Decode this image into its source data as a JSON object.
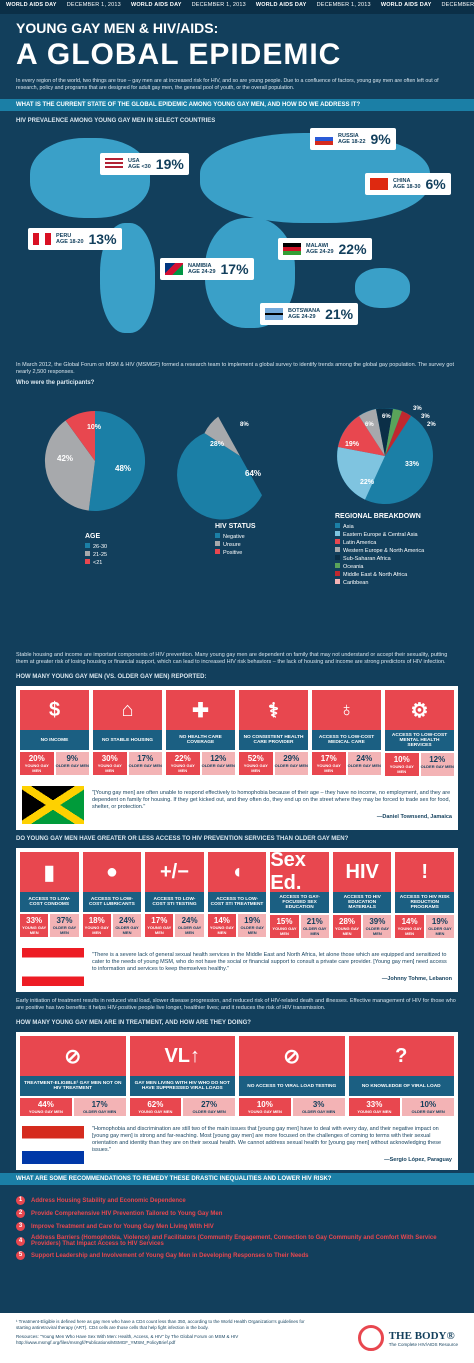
{
  "ticker": [
    "WORLD AIDS DAY",
    "DECEMBER 1, 2013",
    "WORLD AIDS DAY",
    "DECEMBER 1, 2013",
    "WORLD AIDS DAY",
    "DECEMBER 1, 2013",
    "WORLD AIDS DAY",
    "DECEMBER 1, 2013"
  ],
  "header": {
    "title": "YOUNG GAY MEN & HIV/AIDS:",
    "subtitle": "A GLOBAL EPIDEMIC"
  },
  "intro": "In every region of the world, two things are true – gay men are at increased risk for HIV, and so are young people. Due to a confluence of factors, young gay men are often left out of research, policy and programs that are designed for adult gay men, the general pool of youth, or the overall population.",
  "question1": "WHAT IS THE CURRENT STATE OF THE GLOBAL EPIDEMIC AMONG YOUNG GAY MEN, AND HOW DO WE ADDRESS IT?",
  "map_label": "HIV PREVALENCE AMONG YOUNG GAY MEN IN SELECT COUNTRIES",
  "countries": [
    {
      "name": "RUSSIA",
      "age": "AGE 18-22",
      "pct": "9%"
    },
    {
      "name": "USA",
      "age": "AGE <30",
      "pct": "19%"
    },
    {
      "name": "CHINA",
      "age": "AGE 18-30",
      "pct": "6%"
    },
    {
      "name": "PERU",
      "age": "AGE 18-20",
      "pct": "13%"
    },
    {
      "name": "MALAWI",
      "age": "AGE 24-29",
      "pct": "22%"
    },
    {
      "name": "NAMIBIA",
      "age": "AGE 24-29",
      "pct": "17%"
    },
    {
      "name": "BOTSWANA",
      "age": "AGE 24-29",
      "pct": "21%"
    }
  ],
  "survey_desc": "In March 2012, the Global Forum on MSM & HIV (MSMGF) formed a research team to implement a global survey to identify trends among the global gay population. The survey got nearly 2,500 responses.",
  "participants_q": "Who were the participants?",
  "age": {
    "title": "AGE",
    "items": [
      "26-30",
      "21-25",
      "<21"
    ],
    "values": [
      48,
      42,
      10
    ]
  },
  "hiv": {
    "title": "HIV STATUS",
    "items": [
      "Negative",
      "Unsure",
      "Positive"
    ],
    "values": [
      64,
      28,
      8
    ]
  },
  "region": {
    "title": "REGIONAL BREAKDOWN",
    "items": [
      "Asia",
      "Eastern Europe & Central Asia",
      "Latin America",
      "Western Europe & North America",
      "Sub-Saharan Africa",
      "Oceania",
      "Middle East & North Africa",
      "Caribbean"
    ],
    "labels": [
      "33%",
      "22%",
      "19%",
      "6%",
      "6%",
      "3%",
      "3%",
      "2%"
    ]
  },
  "housing_text": "Stable housing and income are important components of HIV prevention. Many young gay men are dependent on family that may not understand or accept their sexuality, putting them at greater risk of losing housing or financial support, which can lead to increased HIV risk behaviors – the lack of housing and income are strong predictors of HIV infection.",
  "q_reported": "HOW MANY YOUNG GAY MEN (VS. OLDER GAY MEN) REPORTED:",
  "reported": [
    {
      "icon": "$",
      "label": "NO INCOME",
      "young": "20%",
      "older": "9%"
    },
    {
      "icon": "⌂",
      "label": "NO STABLE HOUSING",
      "young": "30%",
      "older": "17%"
    },
    {
      "icon": "✚",
      "label": "NO HEALTH CARE COVERAGE",
      "young": "22%",
      "older": "12%"
    },
    {
      "icon": "⚕",
      "label": "NO CONSISTENT HEALTH CARE PROVIDER",
      "young": "52%",
      "older": "29%"
    },
    {
      "icon": "♁",
      "label": "ACCESS TO LOW-COST MEDICAL CARE",
      "young": "17%",
      "older": "24%"
    },
    {
      "icon": "⚙",
      "label": "ACCESS TO LOW-COST MENTAL HEALTH SERVICES",
      "young": "10%",
      "older": "12%"
    }
  ],
  "young_label": "YOUNG GAY MEN",
  "older_label": "OLDER GAY MEN",
  "quote1": {
    "text": "\"[Young gay men] are often unable to respond effectively to homophobia because of their age – they have no income, no employment, and they are dependent on family for housing. If they get kicked out, and they often do, they end up on the street where they may be forced to trade sex for food, shelter, or protection.\"",
    "by": "—Daniel Townsend, Jamaica"
  },
  "q_access": "DO YOUNG GAY MEN HAVE GREATER OR LESS ACCESS TO HIV PREVENTION SERVICES THAN OLDER GAY MEN?",
  "access": [
    {
      "icon": "▮",
      "label": "ACCESS TO LOW-COST CONDOMS",
      "young": "33%",
      "older": "37%"
    },
    {
      "icon": "●",
      "label": "ACCESS TO LOW-COST LUBRICANTS",
      "young": "18%",
      "older": "24%"
    },
    {
      "icon": "+/−",
      "label": "ACCESS TO LOW-COST STI TESTING",
      "young": "17%",
      "older": "24%"
    },
    {
      "icon": "◖",
      "label": "ACCESS TO LOW-COST STI TREATMENT",
      "young": "14%",
      "older": "19%"
    },
    {
      "icon": "Sex Ed.",
      "label": "ACCESS TO GAY-FOCUSED SEX EDUCATION",
      "young": "15%",
      "older": "21%"
    },
    {
      "icon": "HIV",
      "label": "ACCESS TO HIV EDUCATION MATERIALS",
      "young": "28%",
      "older": "39%"
    },
    {
      "icon": "!",
      "label": "ACCESS TO HIV RISK REDUCTION PROGRAMS",
      "young": "14%",
      "older": "19%"
    }
  ],
  "quote2": {
    "text": "\"There is a severe lack of general sexual health services in the Middle East and North Africa, let alone those which are equipped and sensitized to cater to the needs of young MSM, who do not have the social or financial support to consult a private care provider. [Young gay men] need access to information and services to keep themselves healthy.\"",
    "by": "—Johnny Tohme, Lebanon"
  },
  "treatment_text": "Early initiation of treatment results in reduced viral load, slower disease progression, and reduced risk of HIV-related death and illnesses. Effective management of HIV for those who are positive has two benefits: it helps HIV-positive people live longer, healthier lives; and it reduces the risk of HIV transmission.",
  "q_treatment": "HOW MANY YOUNG GAY MEN ARE IN TREATMENT, AND HOW ARE THEY DOING?",
  "treatment": [
    {
      "icon": "⊘",
      "label": "TREATMENT-ELIGIBLE¹ GAY MEN NOT ON HIV TREATMENT",
      "young": "44%",
      "older": "17%"
    },
    {
      "icon": "VL↑",
      "label": "GAY MEN LIVING WITH HIV WHO DO NOT HAVE SUPPRESSED VIRAL LOADS",
      "young": "62%",
      "older": "27%"
    },
    {
      "icon": "⊘",
      "label": "NO ACCESS TO VIRAL LOAD TESTING",
      "young": "10%",
      "older": "3%"
    },
    {
      "icon": "?",
      "label": "NO KNOWLEDGE OF VIRAL LOAD",
      "young": "33%",
      "older": "10%"
    }
  ],
  "quote3": {
    "text": "\"Homophobia and discrimination are still two of the main issues that [young gay men] have to deal with every day, and their negative impact on [young gay men] is strong and far-reaching. Most [young gay men] are more focused on the challenges of coming to terms with their sexual orientation and identity than they are on their sexual health. We cannot address sexual health for [young gay men] without acknowledging these issues.\"",
    "by": "—Sergio López, Paraguay"
  },
  "q_recs": "WHAT ARE SOME RECOMMENDATIONS TO REMEDY THESE DRASTIC INEQUALITIES AND LOWER HIV RISK?",
  "recs": [
    "Address Housing Stability and Economic Dependence",
    "Provide Comprehensive HIV Prevention Tailored to Young Gay Men",
    "Improve Treatment and Care for Young Gay Men Living With HIV",
    "Address Barriers (Homophobia, Violence) and Facilitators (Community Engagement, Connection to Gay Community and Comfort With Service Providers) That Impact Access to HIV Services",
    "Support Leadership and Involvement of Young Gay Men in Developing Responses to Their Needs"
  ],
  "footnote": "¹ Treatment-Eligible is defined here as gay men who have a CD4 count less than 350, according to the World Health Organization's guidelines for starting antiretroviral therapy (ART). CD4 cells are those cells that help fight infection in the body.",
  "resources": "Resources: \"Young Men Who Have Sex With Men: Health, Access, & HIV\" by The Global Forum on MSM & HIV http://www.msmgf.org/files/msmgf//Publications/MSMGF_YMSM_PolicyBrief.pdf",
  "brand": {
    "name": "THE BODY®",
    "tag": "The Complete HIV/AIDS Resource"
  },
  "colors": {
    "accent": "#e8474f",
    "blue": "#1b7fa6",
    "navy": "#123f5c"
  }
}
